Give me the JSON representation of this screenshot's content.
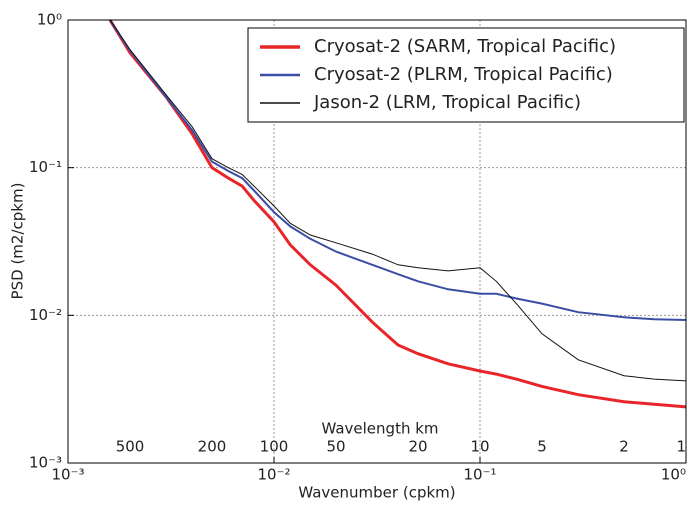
{
  "chart_data": {
    "type": "line",
    "xlabel": "Wavenumber (cpkm)",
    "ylabel": "PSD (m2/cpkm)",
    "xscale": "log",
    "yscale": "log",
    "grid": true,
    "legend": "upper right",
    "xlim": [
      0.001,
      1
    ],
    "ylim": [
      0.001,
      1
    ],
    "xticks": [
      {
        "value": 0.001,
        "label": "10⁻³"
      },
      {
        "value": 0.01,
        "label": "10⁻²"
      },
      {
        "value": 0.1,
        "label": "10⁻¹"
      },
      {
        "value": 1,
        "label": "10⁰"
      }
    ],
    "yticks": [
      {
        "value": 0.001,
        "label": "10⁻³"
      },
      {
        "value": 0.01,
        "label": "10⁻²"
      },
      {
        "value": 0.1,
        "label": "10⁻¹"
      },
      {
        "value": 1,
        "label": "10⁰"
      }
    ],
    "wavelength_axis": {
      "title": "Wavelength km",
      "ticks": [
        500,
        200,
        100,
        50,
        20,
        10,
        5,
        2,
        1
      ]
    },
    "x": [
      0.0016,
      0.002,
      0.003,
      0.004,
      0.005,
      0.006,
      0.007,
      0.008,
      0.01,
      0.012,
      0.015,
      0.02,
      0.03,
      0.04,
      0.05,
      0.07,
      0.1,
      0.12,
      0.15,
      0.2,
      0.3,
      0.5,
      0.7,
      1.0
    ],
    "series": [
      {
        "name": "Cryosat-2 (SARM, Tropical Pacific)",
        "color": "#e8262a",
        "width": 3,
        "values": [
          1.0,
          0.6,
          0.3,
          0.17,
          0.1,
          0.085,
          0.075,
          0.06,
          0.043,
          0.03,
          0.022,
          0.016,
          0.009,
          0.0063,
          0.0055,
          0.0047,
          0.0042,
          0.004,
          0.0037,
          0.0033,
          0.0029,
          0.0026,
          0.0025,
          0.0024
        ]
      },
      {
        "name": "Cryosat-2 (PLRM, Tropical Pacific)",
        "color": "#3a4ea6",
        "width": 2,
        "values": [
          1.0,
          0.62,
          0.3,
          0.18,
          0.11,
          0.095,
          0.085,
          0.07,
          0.05,
          0.04,
          0.033,
          0.027,
          0.022,
          0.019,
          0.017,
          0.015,
          0.014,
          0.014,
          0.013,
          0.012,
          0.0105,
          0.0097,
          0.0094,
          0.0093
        ]
      },
      {
        "name": "Jason-2 (LRM, Tropical Pacific)",
        "color": "#111111",
        "width": 1,
        "values": [
          1.0,
          0.63,
          0.31,
          0.19,
          0.115,
          0.1,
          0.09,
          0.075,
          0.055,
          0.042,
          0.035,
          0.031,
          0.026,
          0.022,
          0.021,
          0.02,
          0.021,
          0.017,
          0.012,
          0.0075,
          0.005,
          0.0039,
          0.0037,
          0.0036
        ]
      }
    ]
  }
}
